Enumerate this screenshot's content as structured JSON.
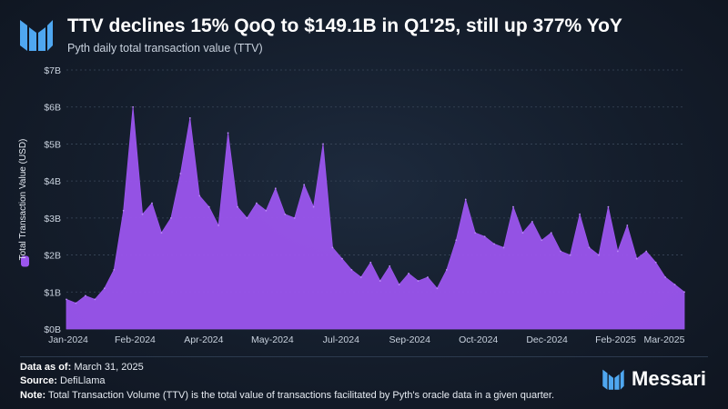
{
  "header": {
    "title": "TTV declines 15% QoQ to $149.1B in Q1'25, still up 377% YoY",
    "subtitle": "Pyth daily total transaction value (TTV)"
  },
  "colors": {
    "accent": "#9b55ee",
    "logo": "#4fa7f0"
  },
  "chart_data": {
    "type": "area",
    "title": "Pyth daily total transaction value (TTV)",
    "xlabel": "",
    "ylabel": "Total Transaction Value (USD)",
    "ylim": [
      0,
      7
    ],
    "unit": "B",
    "yticks": [
      "$0B",
      "$1B",
      "$2B",
      "$3B",
      "$4B",
      "$5B",
      "$6B",
      "$7B"
    ],
    "xticks": [
      "Jan-2024",
      "Feb-2024",
      "Apr-2024",
      "May-2024",
      "Jul-2024",
      "Sep-2024",
      "Oct-2024",
      "Dec-2024",
      "Feb-2025",
      "Mar-2025"
    ],
    "x_start": "2024-01-01",
    "x_end": "2025-03-31",
    "series": [
      {
        "name": "TTV",
        "dates": [
          "2024-01-01",
          "2024-01-08",
          "2024-01-15",
          "2024-01-22",
          "2024-01-29",
          "2024-02-05",
          "2024-02-12",
          "2024-02-19",
          "2024-02-26",
          "2024-03-04",
          "2024-03-11",
          "2024-03-18",
          "2024-03-25",
          "2024-04-01",
          "2024-04-08",
          "2024-04-15",
          "2024-04-22",
          "2024-04-29",
          "2024-05-06",
          "2024-05-13",
          "2024-05-20",
          "2024-05-27",
          "2024-06-03",
          "2024-06-10",
          "2024-06-17",
          "2024-06-24",
          "2024-07-01",
          "2024-07-08",
          "2024-07-15",
          "2024-07-22",
          "2024-07-29",
          "2024-08-05",
          "2024-08-12",
          "2024-08-19",
          "2024-08-26",
          "2024-09-02",
          "2024-09-09",
          "2024-09-16",
          "2024-09-23",
          "2024-09-30",
          "2024-10-07",
          "2024-10-14",
          "2024-10-21",
          "2024-10-28",
          "2024-11-04",
          "2024-11-11",
          "2024-11-18",
          "2024-11-25",
          "2024-12-02",
          "2024-12-09",
          "2024-12-16",
          "2024-12-23",
          "2024-12-30",
          "2025-01-06",
          "2025-01-13",
          "2025-01-20",
          "2025-01-27",
          "2025-02-03",
          "2025-02-10",
          "2025-02-17",
          "2025-02-24",
          "2025-03-03",
          "2025-03-10",
          "2025-03-17",
          "2025-03-24",
          "2025-03-31"
        ],
        "values": [
          0.8,
          0.7,
          0.9,
          0.8,
          1.1,
          1.6,
          3.2,
          6.0,
          3.1,
          3.4,
          2.6,
          3.0,
          4.2,
          5.7,
          3.6,
          3.3,
          2.8,
          5.3,
          3.3,
          3.0,
          3.4,
          3.2,
          3.8,
          3.1,
          3.0,
          3.9,
          3.3,
          5.0,
          2.2,
          1.9,
          1.6,
          1.4,
          1.8,
          1.3,
          1.7,
          1.2,
          1.5,
          1.3,
          1.4,
          1.1,
          1.6,
          2.4,
          3.5,
          2.6,
          2.5,
          2.3,
          2.2,
          3.3,
          2.6,
          2.9,
          2.4,
          2.6,
          2.1,
          2.0,
          3.1,
          2.2,
          2.0,
          3.3,
          2.1,
          2.8,
          1.9,
          2.1,
          1.8,
          1.4,
          1.2,
          1.0
        ]
      }
    ]
  },
  "footer": {
    "data_as_of_label": "Data as of:",
    "data_as_of_value": "March 31, 2025",
    "source_label": "Source:",
    "source_value": "DefiLlama",
    "note_label": "Note:",
    "note_value": "Total Transaction Volume (TTV) is the total value of transactions facilitated by Pyth's oracle data in a given quarter."
  },
  "brand": {
    "name": "Messari"
  }
}
